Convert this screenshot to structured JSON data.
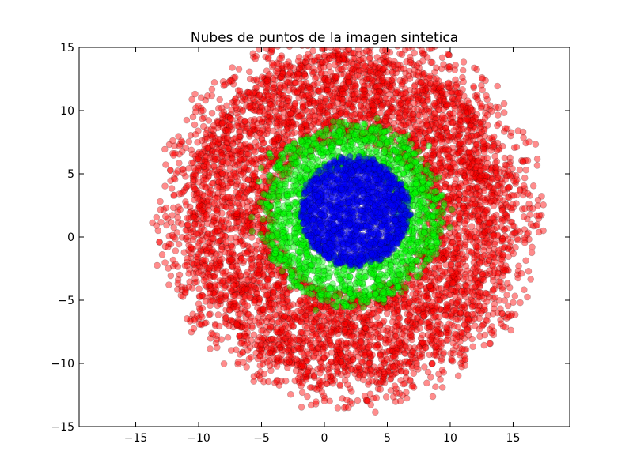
{
  "chart_data": {
    "type": "scatter",
    "title": "Nubes de puntos de la imagen sintetica",
    "xlabel": "",
    "ylabel": "",
    "xlim": [
      -19.5,
      19.5
    ],
    "ylim": [
      -15,
      15
    ],
    "x_ticks": [
      -15,
      -10,
      -5,
      0,
      5,
      10,
      15
    ],
    "y_ticks": [
      -15,
      -10,
      -5,
      0,
      5,
      10,
      15
    ],
    "x_tick_labels": [
      "−15",
      "−10",
      "−5",
      "0",
      "5",
      "10",
      "15"
    ],
    "y_tick_labels": [
      "−15",
      "−10",
      "−5",
      "0",
      "5",
      "10",
      "15"
    ],
    "grid": false,
    "legend": "none",
    "series": [
      {
        "color": "#ff0000",
        "center": [
          2.0,
          1.6
        ],
        "radius_range": [
          6.0,
          13.0
        ],
        "points": 6000
      },
      {
        "color": "#00ff00",
        "center": [
          2.2,
          1.8
        ],
        "radius_range": [
          3.5,
          7.2
        ],
        "points": 1800
      },
      {
        "color": "#0000ff",
        "center": [
          2.4,
          2.0
        ],
        "radius_range": [
          0.0,
          4.3
        ],
        "points": 1700
      }
    ]
  }
}
